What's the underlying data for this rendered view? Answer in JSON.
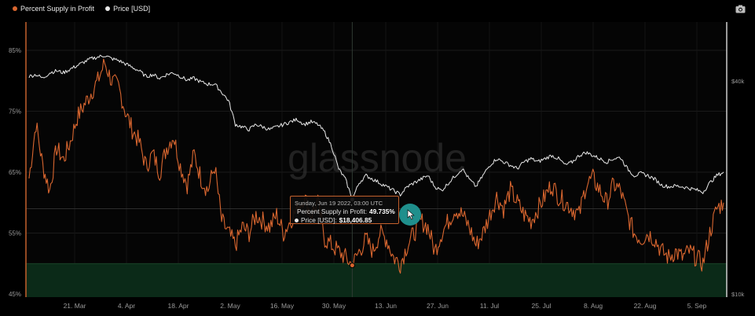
{
  "legend": {
    "items": [
      {
        "label": "Percent Supply in Profit",
        "color": "#d9662f"
      },
      {
        "label": "Price [USD]",
        "color": "#e8e8e8"
      }
    ]
  },
  "toolbar": {
    "camera_icon": "camera-icon"
  },
  "watermark": "glassnode",
  "tooltip": {
    "date": "Sunday, Jun 19 2022, 03:00 UTC",
    "supply_label": "Percent Supply in Profit:",
    "supply_value": "49.735%",
    "price_label": "Price [USD]:",
    "price_value": "$18,406.85"
  },
  "chart_data": {
    "type": "line",
    "x_ticks": [
      "21. Mar",
      "4. Apr",
      "18. Apr",
      "2. May",
      "16. May",
      "30. May",
      "13. Jun",
      "27. Jun",
      "11. Jul",
      "25. Jul",
      "8. Aug",
      "22. Aug",
      "5. Sep"
    ],
    "y_left": {
      "ticks": [
        "45%",
        "55%",
        "65%",
        "75%",
        "85%"
      ],
      "range": [
        45,
        85
      ]
    },
    "y_right": {
      "ticks": [
        "$10k",
        "$40k"
      ],
      "scale": "log"
    },
    "threshold_band": {
      "from": 45,
      "to": 50,
      "color": "#0b2a18"
    },
    "reference_line": 59,
    "series": [
      {
        "name": "Percent Supply in Profit",
        "color": "#d9662f",
        "values": [
          [
            0,
            64
          ],
          [
            1,
            73
          ],
          [
            2,
            66
          ],
          [
            3,
            62
          ],
          [
            4,
            69
          ],
          [
            5,
            67
          ],
          [
            6,
            70
          ],
          [
            7,
            74
          ],
          [
            8,
            76
          ],
          [
            9,
            78
          ],
          [
            10,
            80
          ],
          [
            11,
            83
          ],
          [
            12,
            80
          ],
          [
            13,
            79
          ],
          [
            14,
            75
          ],
          [
            15,
            72
          ],
          [
            16,
            70
          ],
          [
            17,
            66
          ],
          [
            18,
            68
          ],
          [
            19,
            65
          ],
          [
            20,
            69
          ],
          [
            21,
            71
          ],
          [
            22,
            66
          ],
          [
            23,
            63
          ],
          [
            24,
            68
          ],
          [
            25,
            64
          ],
          [
            26,
            62
          ],
          [
            27,
            66
          ],
          [
            28,
            57
          ],
          [
            29,
            55
          ],
          [
            30,
            53
          ],
          [
            31,
            56
          ],
          [
            32,
            55
          ],
          [
            33,
            58
          ],
          [
            34,
            57
          ],
          [
            35,
            56
          ],
          [
            36,
            58
          ],
          [
            37,
            55
          ],
          [
            38,
            57
          ],
          [
            39,
            59
          ],
          [
            40,
            61
          ],
          [
            41,
            58
          ],
          [
            42,
            60
          ],
          [
            43,
            54
          ],
          [
            44,
            53
          ],
          [
            45,
            52
          ],
          [
            46,
            51
          ],
          [
            47,
            49.7
          ],
          [
            48,
            52
          ],
          [
            49,
            54
          ],
          [
            50,
            52
          ],
          [
            51,
            55
          ],
          [
            52,
            54
          ],
          [
            53,
            51
          ],
          [
            54,
            50
          ],
          [
            55,
            53
          ],
          [
            56,
            55
          ],
          [
            57,
            57
          ],
          [
            58,
            56
          ],
          [
            59,
            52
          ],
          [
            60,
            55
          ],
          [
            61,
            57
          ],
          [
            62,
            59
          ],
          [
            63,
            58
          ],
          [
            64,
            56
          ],
          [
            65,
            53
          ],
          [
            66,
            55
          ],
          [
            67,
            58
          ],
          [
            68,
            61
          ],
          [
            69,
            59
          ],
          [
            70,
            62
          ],
          [
            71,
            60
          ],
          [
            72,
            58
          ],
          [
            73,
            57
          ],
          [
            74,
            59
          ],
          [
            75,
            61
          ],
          [
            76,
            63
          ],
          [
            77,
            61
          ],
          [
            78,
            60
          ],
          [
            79,
            59
          ],
          [
            80,
            58
          ],
          [
            81,
            63
          ],
          [
            82,
            64
          ],
          [
            83,
            62
          ],
          [
            84,
            60
          ],
          [
            85,
            63
          ],
          [
            86,
            62
          ],
          [
            87,
            58
          ],
          [
            88,
            55
          ],
          [
            89,
            54
          ],
          [
            90,
            55
          ],
          [
            91,
            54
          ],
          [
            92,
            52
          ],
          [
            93,
            51
          ],
          [
            94,
            52
          ],
          [
            95,
            51
          ],
          [
            96,
            52
          ],
          [
            97,
            51
          ],
          [
            98,
            50
          ],
          [
            99,
            55
          ],
          [
            100,
            59
          ],
          [
            101,
            60
          ]
        ]
      },
      {
        "name": "Price [USD]",
        "color": "#e8e8e8",
        "values": [
          [
            0,
            41000
          ],
          [
            1,
            41500
          ],
          [
            2,
            40500
          ],
          [
            3,
            42000
          ],
          [
            4,
            42500
          ],
          [
            5,
            42000
          ],
          [
            6,
            43000
          ],
          [
            7,
            44000
          ],
          [
            8,
            45000
          ],
          [
            9,
            46000
          ],
          [
            10,
            46500
          ],
          [
            11,
            47000
          ],
          [
            12,
            46000
          ],
          [
            13,
            45500
          ],
          [
            14,
            44500
          ],
          [
            15,
            43500
          ],
          [
            16,
            42500
          ],
          [
            17,
            41000
          ],
          [
            18,
            41500
          ],
          [
            19,
            40500
          ],
          [
            20,
            41500
          ],
          [
            21,
            42000
          ],
          [
            22,
            41000
          ],
          [
            23,
            40000
          ],
          [
            24,
            40500
          ],
          [
            25,
            39500
          ],
          [
            26,
            39000
          ],
          [
            27,
            39000
          ],
          [
            28,
            37000
          ],
          [
            29,
            35000
          ],
          [
            30,
            30000
          ],
          [
            31,
            29500
          ],
          [
            32,
            29000
          ],
          [
            33,
            30000
          ],
          [
            34,
            29500
          ],
          [
            35,
            29000
          ],
          [
            36,
            29500
          ],
          [
            37,
            30000
          ],
          [
            38,
            30500
          ],
          [
            39,
            31000
          ],
          [
            40,
            30000
          ],
          [
            41,
            30500
          ],
          [
            42,
            30000
          ],
          [
            43,
            28500
          ],
          [
            44,
            26000
          ],
          [
            45,
            22500
          ],
          [
            46,
            21000
          ],
          [
            47,
            18400
          ],
          [
            48,
            20500
          ],
          [
            49,
            21500
          ],
          [
            50,
            21000
          ],
          [
            51,
            20500
          ],
          [
            52,
            20000
          ],
          [
            53,
            19500
          ],
          [
            54,
            19000
          ],
          [
            55,
            20000
          ],
          [
            56,
            20500
          ],
          [
            57,
            21000
          ],
          [
            58,
            21500
          ],
          [
            59,
            20000
          ],
          [
            60,
            19500
          ],
          [
            61,
            20500
          ],
          [
            62,
            21500
          ],
          [
            63,
            22500
          ],
          [
            64,
            21000
          ],
          [
            65,
            20000
          ],
          [
            66,
            21500
          ],
          [
            67,
            23000
          ],
          [
            68,
            24000
          ],
          [
            69,
            23500
          ],
          [
            70,
            23000
          ],
          [
            71,
            22500
          ],
          [
            72,
            23500
          ],
          [
            73,
            24000
          ],
          [
            74,
            23500
          ],
          [
            75,
            24000
          ],
          [
            76,
            24500
          ],
          [
            77,
            24000
          ],
          [
            78,
            23000
          ],
          [
            79,
            23500
          ],
          [
            80,
            24500
          ],
          [
            81,
            25000
          ],
          [
            82,
            24500
          ],
          [
            83,
            24000
          ],
          [
            84,
            23500
          ],
          [
            85,
            24000
          ],
          [
            86,
            24200
          ],
          [
            87,
            22500
          ],
          [
            88,
            21500
          ],
          [
            89,
            21800
          ],
          [
            90,
            21500
          ],
          [
            91,
            21000
          ],
          [
            92,
            20200
          ],
          [
            93,
            20000
          ],
          [
            94,
            20100
          ],
          [
            95,
            20000
          ],
          [
            96,
            19800
          ],
          [
            97,
            19600
          ],
          [
            98,
            19300
          ],
          [
            99,
            20500
          ],
          [
            100,
            21500
          ],
          [
            101,
            22000
          ]
        ]
      }
    ],
    "hover_index": 47,
    "grid": true
  }
}
